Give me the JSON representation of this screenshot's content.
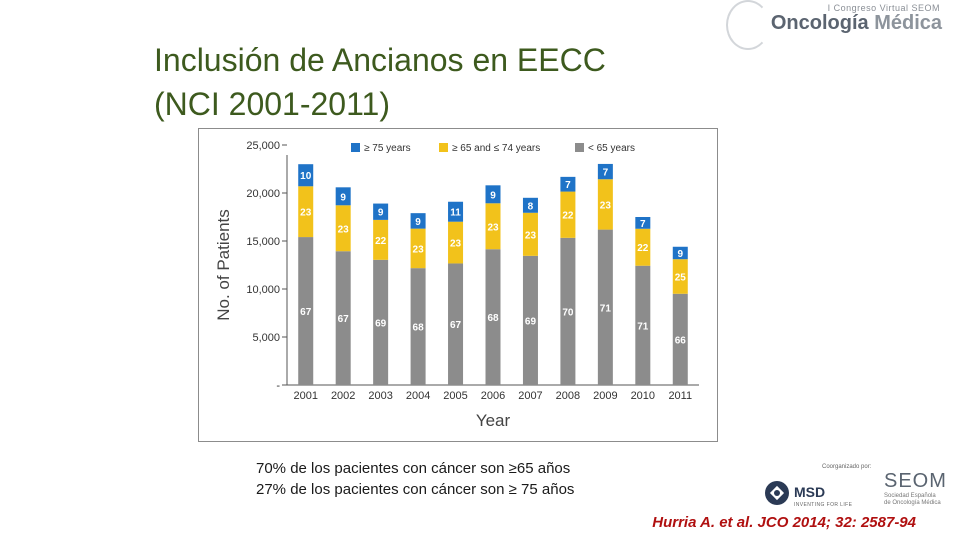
{
  "slide": {
    "title": "Inclusión de Ancianos en EECC\n(NCI 2001-2011)",
    "stats": [
      "70% de los pacientes con cáncer son ≥65 años",
      "27% de los pacientes con cáncer son ≥ 75 años"
    ],
    "citation": "Hurria A. et al. JCO 2014; 32: 2587-94"
  },
  "branding": {
    "congress": "I Congreso Virtual SEOM",
    "name_first": "Oncología",
    "name_second": " Médica",
    "coorganized": "Coorganizado por:",
    "msd_name": "MSD",
    "msd_tag": "INVENTING FOR LIFE",
    "seom_name": "SEOM",
    "seom_sub": "Sociedad Española de Oncología Médica"
  },
  "colors": {
    "title": "#3d5a1e",
    "citation": "#b01010",
    "under65": "#8c8c8c",
    "age65to74": "#f2c21b",
    "over75": "#1f73c7"
  },
  "chart_data": {
    "type": "bar",
    "stacked": true,
    "xlabel": "Year",
    "ylabel": "No. of Patients",
    "ylim": [
      0,
      25000
    ],
    "yticks": [
      0,
      5000,
      10000,
      15000,
      20000,
      25000
    ],
    "ytick_labels": [
      "-",
      "5,000",
      "10,000",
      "15,000",
      "20,000",
      "25,000"
    ],
    "legend_position": "top",
    "categories": [
      "2001",
      "2002",
      "2003",
      "2004",
      "2005",
      "2006",
      "2007",
      "2008",
      "2009",
      "2010",
      "2011"
    ],
    "totals": [
      23000,
      20800,
      18900,
      17900,
      18900,
      20800,
      19500,
      21900,
      22800,
      17500,
      14400
    ],
    "series": [
      {
        "name": "< 65 years",
        "color": "#8c8c8c",
        "percent_labels": [
          "67",
          "67",
          "69",
          "68",
          "67",
          "68",
          "69",
          "70",
          "71",
          "71",
          "66"
        ]
      },
      {
        "name": "≥ 65 and ≤ 74 years",
        "color": "#f2c21b",
        "percent_labels": [
          "23",
          "23",
          "22",
          "23",
          "23",
          "23",
          "23",
          "22",
          "23",
          "22",
          "25"
        ]
      },
      {
        "name": "≥ 75 years",
        "color": "#1f73c7",
        "percent_labels": [
          "10",
          "9",
          "9",
          "9",
          "11",
          "9",
          "8",
          "7",
          "7",
          "7",
          "9"
        ]
      }
    ]
  }
}
